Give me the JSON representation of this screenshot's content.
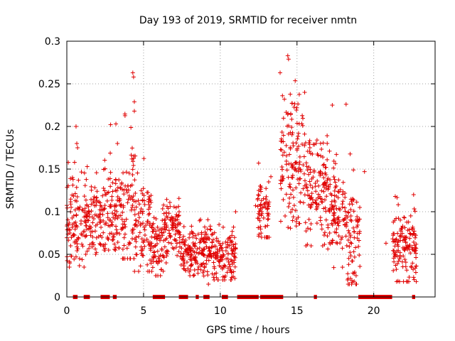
{
  "chart_data": {
    "type": "scatter",
    "title": "Day 193 of 2019, SRMTID for receiver nmtn",
    "xlabel": "GPS time / hours",
    "ylabel": "SRMTID / TECUs",
    "xlim": [
      0,
      24
    ],
    "ylim": [
      0,
      0.3
    ],
    "xticks": [
      0,
      5,
      10,
      15,
      20
    ],
    "xtick_labels": [
      "0",
      "5",
      "10",
      "15",
      "20"
    ],
    "yticks": [
      0,
      0.05,
      0.1,
      0.15,
      0.2,
      0.25,
      0.3
    ],
    "ytick_labels": [
      "0",
      "0.05",
      "0.1",
      "0.15",
      "0.2",
      "0.25",
      "0.3"
    ],
    "grid": true,
    "marker": "+",
    "color": "#e00000",
    "clusters": [
      {
        "x": [
          0.0,
          1.2
        ],
        "y": [
          0.035,
          0.2
        ],
        "center": 0.085
      },
      {
        "x": [
          1.2,
          2.3
        ],
        "y": [
          0.05,
          0.155
        ],
        "center": 0.09
      },
      {
        "x": [
          2.3,
          3.4
        ],
        "y": [
          0.055,
          0.203
        ],
        "center": 0.1
      },
      {
        "x": [
          3.4,
          4.4
        ],
        "y": [
          0.045,
          0.263
        ],
        "center": 0.1
      },
      {
        "x": [
          4.4,
          5.6
        ],
        "y": [
          0.03,
          0.18
        ],
        "center": 0.085
      },
      {
        "x": [
          5.6,
          6.3
        ],
        "y": [
          0.025,
          0.12
        ],
        "center": 0.06
      },
      {
        "x": [
          6.3,
          7.4
        ],
        "y": [
          0.04,
          0.128
        ],
        "center": 0.08
      },
      {
        "x": [
          7.4,
          8.5
        ],
        "y": [
          0.025,
          0.09
        ],
        "center": 0.05
      },
      {
        "x": [
          8.5,
          9.6
        ],
        "y": [
          0.015,
          0.102
        ],
        "center": 0.055
      },
      {
        "x": [
          9.6,
          11.0
        ],
        "y": [
          0.02,
          0.103
        ],
        "center": 0.045
      },
      {
        "x": [
          12.4,
          13.2
        ],
        "y": [
          0.07,
          0.155
        ],
        "center": 0.1
      },
      {
        "x": [
          13.9,
          15.5
        ],
        "y": [
          0.08,
          0.283
        ],
        "center": 0.16
      },
      {
        "x": [
          15.5,
          17.0
        ],
        "y": [
          0.06,
          0.215
        ],
        "center": 0.13
      },
      {
        "x": [
          17.0,
          18.2
        ],
        "y": [
          0.03,
          0.2
        ],
        "center": 0.1
      },
      {
        "x": [
          18.2,
          19.1
        ],
        "y": [
          0.015,
          0.226
        ],
        "center": 0.07
      },
      {
        "x": [
          21.2,
          22.8
        ],
        "y": [
          0.018,
          0.12
        ],
        "center": 0.06
      }
    ],
    "outliers": [
      {
        "x": 0.6,
        "y": 0.2
      },
      {
        "x": 0.65,
        "y": 0.18
      },
      {
        "x": 0.7,
        "y": 0.175
      },
      {
        "x": 3.2,
        "y": 0.203
      },
      {
        "x": 3.3,
        "y": 0.18
      },
      {
        "x": 4.3,
        "y": 0.263
      },
      {
        "x": 4.35,
        "y": 0.258
      },
      {
        "x": 4.4,
        "y": 0.229
      },
      {
        "x": 4.4,
        "y": 0.218
      },
      {
        "x": 11.0,
        "y": 0.1
      },
      {
        "x": 12.3,
        "y": 0.107
      },
      {
        "x": 12.5,
        "y": 0.157
      },
      {
        "x": 12.6,
        "y": 0.13
      },
      {
        "x": 13.3,
        "y": 0.141
      },
      {
        "x": 14.4,
        "y": 0.283
      },
      {
        "x": 14.45,
        "y": 0.279
      },
      {
        "x": 13.9,
        "y": 0.263
      },
      {
        "x": 15.5,
        "y": 0.24
      },
      {
        "x": 17.3,
        "y": 0.225
      },
      {
        "x": 18.2,
        "y": 0.226
      },
      {
        "x": 18.3,
        "y": 0.02
      },
      {
        "x": 19.4,
        "y": 0.147
      },
      {
        "x": 20.8,
        "y": 0.063
      },
      {
        "x": 22.6,
        "y": 0.12
      },
      {
        "x": 22.2,
        "y": 0.018
      }
    ],
    "zero_segments": [
      [
        0.4,
        0.7
      ],
      [
        1.1,
        1.5
      ],
      [
        2.2,
        2.8
      ],
      [
        3.0,
        3.25
      ],
      [
        5.6,
        6.4
      ],
      [
        7.3,
        7.9
      ],
      [
        8.4,
        8.6
      ],
      [
        8.9,
        9.3
      ],
      [
        10.1,
        10.5
      ],
      [
        11.1,
        12.5
      ],
      [
        12.6,
        14.1
      ],
      [
        16.1,
        16.3
      ],
      [
        19.0,
        21.2
      ],
      [
        22.5,
        22.7
      ]
    ]
  }
}
